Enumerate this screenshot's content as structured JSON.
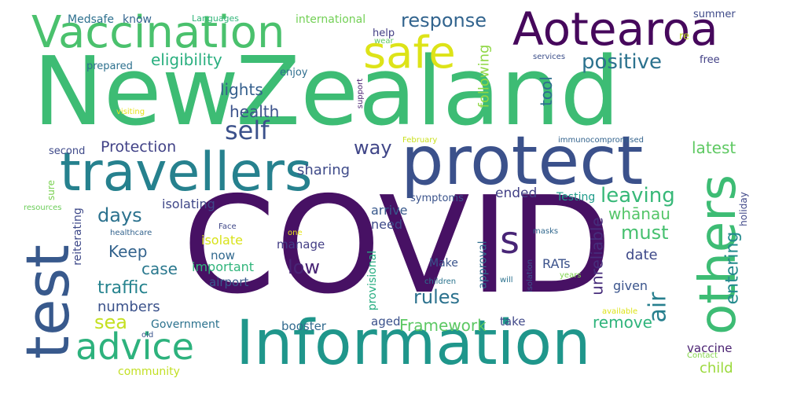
{
  "words": [
    {
      "text": "New",
      "color": "#3dbc74"
    },
    {
      "text": "Zealand",
      "color": "#3dbc74"
    },
    {
      "text": "COVID",
      "color": "#471164"
    },
    {
      "text": "protect",
      "color": "#3b518b"
    },
    {
      "text": "Information",
      "color": "#1f968b"
    },
    {
      "text": "travellers",
      "color": "#26818e"
    },
    {
      "text": "Vaccination",
      "color": "#4ac16d"
    },
    {
      "text": "Aotearoa",
      "color": "#46085c"
    },
    {
      "text": "safe",
      "color": "#dde318"
    },
    {
      "text": "test",
      "color": "#38598c"
    },
    {
      "text": "others",
      "color": "#3dbc74"
    },
    {
      "text": "advice",
      "color": "#2db27d"
    },
    {
      "text": "s",
      "color": "#482576"
    },
    {
      "text": "self",
      "color": "#3b518b"
    },
    {
      "text": "positive",
      "color": "#2c728e"
    },
    {
      "text": "eligibility",
      "color": "#29af7f"
    },
    {
      "text": "response",
      "color": "#32648e"
    },
    {
      "text": "leaving",
      "color": "#37b878"
    },
    {
      "text": "days",
      "color": "#2c728e"
    },
    {
      "text": "air",
      "color": "#277f8e"
    },
    {
      "text": "entering",
      "color": "#238a8d"
    },
    {
      "text": "must",
      "color": "#46c06f"
    },
    {
      "text": "lights",
      "color": "#355f8d"
    },
    {
      "text": "health",
      "color": "#3b528b"
    },
    {
      "text": "way",
      "color": "#404688"
    },
    {
      "text": "sea",
      "color": "#c5e021"
    },
    {
      "text": "traffic",
      "color": "#25838e"
    },
    {
      "text": "Framework",
      "color": "#5cc863"
    },
    {
      "text": "rules",
      "color": "#2c728e"
    },
    {
      "text": "Protection",
      "color": "#414287"
    },
    {
      "text": "sharing",
      "color": "#3e4a89"
    },
    {
      "text": "numbers",
      "color": "#3b528b"
    },
    {
      "text": "Keep",
      "color": "#33638d"
    },
    {
      "text": "case",
      "color": "#2a788e"
    },
    {
      "text": "low",
      "color": "#482475"
    },
    {
      "text": "latest",
      "color": "#5ec962"
    },
    {
      "text": "whānau",
      "color": "#54c568"
    },
    {
      "text": "date",
      "color": "#3e4989"
    },
    {
      "text": "remove",
      "color": "#2fb47c"
    },
    {
      "text": "child",
      "color": "#9bd93c"
    },
    {
      "text": "unreliable",
      "color": "#472d7b"
    },
    {
      "text": "following",
      "color": "#8fd744"
    },
    {
      "text": "tool",
      "color": "#2e6e8e"
    },
    {
      "text": "ended",
      "color": "#424086"
    },
    {
      "text": "Testing",
      "color": "#1e9b8a"
    },
    {
      "text": "symptoms",
      "color": "#3a538b"
    },
    {
      "text": "arrive",
      "color": "#38598c"
    },
    {
      "text": "need",
      "color": "#3e4a89"
    },
    {
      "text": "isolate",
      "color": "#d8e219"
    },
    {
      "text": "isolating",
      "color": "#3f4788"
    },
    {
      "text": "reiterating",
      "color": "#3e4989"
    },
    {
      "text": "important",
      "color": "#31b57b"
    },
    {
      "text": "now",
      "color": "#31688e"
    },
    {
      "text": "airport",
      "color": "#38598c"
    },
    {
      "text": "manage",
      "color": "#433e85"
    },
    {
      "text": "Make",
      "color": "#3a548c"
    },
    {
      "text": "provisional",
      "color": "#27ad81"
    },
    {
      "text": "approval",
      "color": "#2e6d8e"
    },
    {
      "text": "RATs",
      "color": "#3b528b"
    },
    {
      "text": "given",
      "color": "#3a548c"
    },
    {
      "text": "take",
      "color": "#3f4889"
    },
    {
      "text": "aged",
      "color": "#3b518b"
    },
    {
      "text": "booster",
      "color": "#306a8e"
    },
    {
      "text": "Government",
      "color": "#2c728e"
    },
    {
      "text": "vaccine",
      "color": "#481f70"
    },
    {
      "text": "community",
      "color": "#c2df23"
    },
    {
      "text": "Medsafe",
      "color": "#2d708e"
    },
    {
      "text": "know",
      "color": "#32648e"
    },
    {
      "text": "Languages",
      "color": "#32b67a"
    },
    {
      "text": "international",
      "color": "#73d056"
    },
    {
      "text": "help",
      "color": "#433e85"
    },
    {
      "text": "prepared",
      "color": "#2d708e"
    },
    {
      "text": "enjoy",
      "color": "#2e6e8e"
    },
    {
      "text": "second",
      "color": "#3e4989"
    },
    {
      "text": "sure",
      "color": "#7ad151"
    },
    {
      "text": "resources",
      "color": "#6ccd5a"
    },
    {
      "text": "healthcare",
      "color": "#33638d"
    },
    {
      "text": "Face",
      "color": "#3f4788"
    },
    {
      "text": "one",
      "color": "#e5e419"
    },
    {
      "text": "summer",
      "color": "#3e4a89"
    },
    {
      "text": "re",
      "color": "#c0df25"
    },
    {
      "text": "free",
      "color": "#424086"
    },
    {
      "text": "services",
      "color": "#3c4f8a"
    },
    {
      "text": "support",
      "color": "#481f70"
    },
    {
      "text": "visiting",
      "color": "#e7e419"
    },
    {
      "text": "February",
      "color": "#cae11f"
    },
    {
      "text": "immunocompromised",
      "color": "#33638d"
    },
    {
      "text": "holiday",
      "color": "#3f4788"
    },
    {
      "text": "masks",
      "color": "#31688e"
    },
    {
      "text": "will",
      "color": "#2c728e"
    },
    {
      "text": "children",
      "color": "#2b748e"
    },
    {
      "text": "isolation",
      "color": "#3b528b"
    },
    {
      "text": "years",
      "color": "#7fd34e"
    },
    {
      "text": "available",
      "color": "#dde318"
    },
    {
      "text": "Contact",
      "color": "#84d44b"
    },
    {
      "text": "old",
      "color": "#3a548c"
    },
    {
      "text": "wear",
      "color": "#5ec962"
    }
  ]
}
